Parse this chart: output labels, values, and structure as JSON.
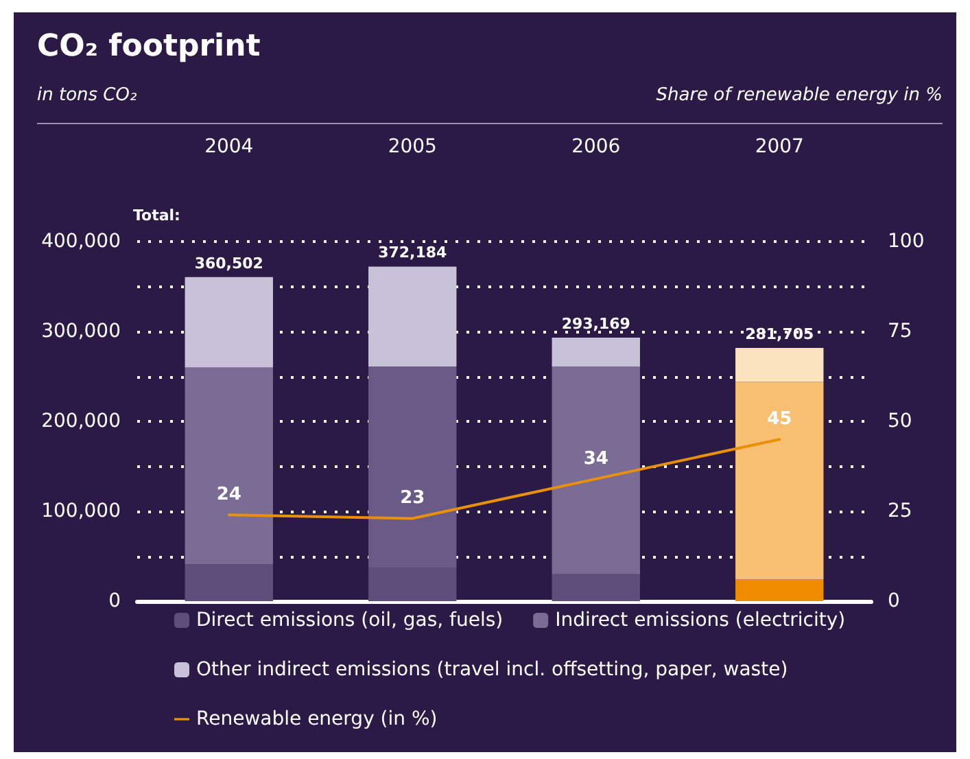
{
  "chart_data": {
    "type": "bar",
    "title": "CO₂ footprint",
    "ylabel": "in tons CO₂",
    "y2label": "Share of renewable energy in %",
    "categories": [
      "2004",
      "2005",
      "2006",
      "2007"
    ],
    "stacked": true,
    "series": [
      {
        "name": "Direct emissions (oil, gas, fuels)",
        "color": "#5e4f7a",
        "colors": [
          "#5e4f7a",
          "#5e4f7a",
          "#5e4f7a",
          "#f08c00"
        ],
        "values": [
          41000,
          37000,
          30000,
          24000
        ]
      },
      {
        "name": "Indirect emissions (electricity)",
        "color": "#7a6c95",
        "colors": [
          "#7a6c95",
          "#6a5a88",
          "#7a6c95",
          "#f6bf72"
        ],
        "values": [
          219000,
          224000,
          231000,
          220000
        ]
      },
      {
        "name": "Other indirect emissions (travel incl. offsetting, paper, waste)",
        "color": "#c8c2d8",
        "colors": [
          "#c8c2d8",
          "#c8c2d8",
          "#c8c2d8",
          "#fbe3c0"
        ],
        "values": [
          100502,
          111184,
          32169,
          37705
        ]
      },
      {
        "name": "Renewable energy (in %)",
        "type": "line",
        "axis": "y2",
        "color": "#e8900a",
        "values": [
          24,
          23,
          34,
          45
        ],
        "value_labels": [
          "24",
          "23",
          "34",
          "45"
        ]
      }
    ],
    "totals": [
      "360,502",
      "372,184",
      "293,169",
      "281,705"
    ],
    "annotations": [
      "Total:"
    ],
    "ylim": [
      0,
      400000
    ],
    "yticks": [
      {
        "value": 0,
        "label": "0"
      },
      {
        "value": 50000,
        "label": null
      },
      {
        "value": 100000,
        "label": "100,000"
      },
      {
        "value": 150000,
        "label": null
      },
      {
        "value": 200000,
        "label": "200,000"
      },
      {
        "value": 250000,
        "label": null
      },
      {
        "value": 300000,
        "label": "300,000"
      },
      {
        "value": 350000,
        "label": null
      },
      {
        "value": 400000,
        "label": "400,000"
      }
    ],
    "y2lim": [
      0,
      100
    ],
    "y2ticks": [
      0,
      25,
      50,
      75,
      100
    ],
    "grid": "y",
    "legend": "bottom",
    "marker": "none"
  }
}
